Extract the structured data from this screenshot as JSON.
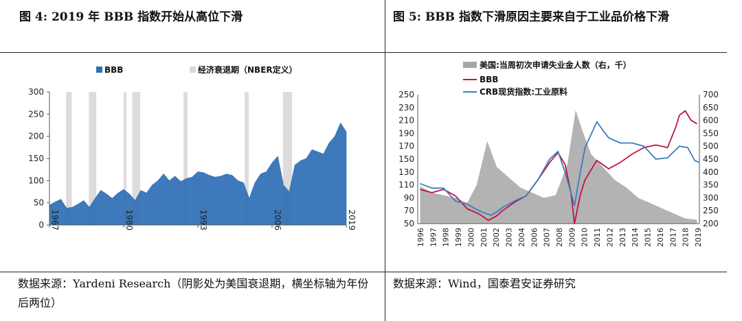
{
  "left": {
    "title": "图 4:   2019 年 BBB 指数开始从高位下滑",
    "source": "数据来源：Yardeni Research（阴影处为美国衰退期，横坐标轴为年份后两位）"
  },
  "right": {
    "title": "图 5:   BBB 指数下滑原因主要来自于工业品价格下滑",
    "source": "数据来源：Wind，国泰君安证券研究"
  },
  "chart_data": [
    {
      "type": "area",
      "title": "2019 年 BBB 指数开始从高位下滑",
      "legend": [
        "BBB",
        "经济衰退期（NBER定义）"
      ],
      "legend_position": "top",
      "x_ticks": [
        "1967",
        "1980",
        "1993",
        "2006",
        "2019"
      ],
      "y_ticks": [
        0,
        50,
        100,
        150,
        200,
        250,
        300
      ],
      "ylim": [
        0,
        300
      ],
      "xlim": [
        1967,
        2019
      ],
      "series": [
        {
          "name": "BBB",
          "color": "#2e6fb5",
          "x": [
            1967,
            1968,
            1969,
            1970,
            1971,
            1972,
            1973,
            1974,
            1975,
            1976,
            1977,
            1978,
            1979,
            1980,
            1981,
            1982,
            1983,
            1984,
            1985,
            1986,
            1987,
            1988,
            1989,
            1990,
            1991,
            1992,
            1993,
            1994,
            1995,
            1996,
            1997,
            1998,
            1999,
            2000,
            2001,
            2002,
            2003,
            2004,
            2005,
            2006,
            2007,
            2008,
            2009,
            2010,
            2011,
            2012,
            2013,
            2014,
            2015,
            2016,
            2017,
            2018,
            2019
          ],
          "values": [
            45,
            52,
            58,
            38,
            40,
            47,
            55,
            40,
            60,
            78,
            70,
            60,
            72,
            80,
            70,
            55,
            78,
            72,
            90,
            100,
            115,
            100,
            110,
            98,
            105,
            108,
            120,
            118,
            112,
            108,
            110,
            115,
            112,
            100,
            95,
            60,
            95,
            115,
            120,
            140,
            155,
            90,
            75,
            135,
            145,
            150,
            170,
            165,
            160,
            185,
            200,
            230,
            210
          ]
        }
      ],
      "recessions": [
        [
          1969.9,
          1970.9
        ],
        [
          1973.9,
          1975.2
        ],
        [
          1980.0,
          1980.5
        ],
        [
          1981.5,
          1982.9
        ],
        [
          1990.5,
          1991.2
        ],
        [
          2001.2,
          2001.9
        ],
        [
          2007.9,
          2009.5
        ]
      ]
    },
    {
      "type": "line",
      "title": "BBB 指数下滑原因主要来自于工业品价格下滑",
      "legend": [
        "美国:当周初次申请失业金人数（右，千）",
        "BBB",
        "CRB现货指数:工业原料"
      ],
      "legend_position": "top",
      "x_ticks": [
        "1996",
        "1997",
        "1998",
        "1999",
        "2000",
        "2001",
        "2002",
        "2003",
        "2004",
        "2006",
        "2007",
        "2008",
        "2009",
        "2010",
        "2011",
        "2012",
        "2013",
        "2014",
        "2015",
        "2016",
        "2017",
        "2018",
        "2019"
      ],
      "y_left_ticks": [
        50,
        70,
        90,
        110,
        130,
        150,
        170,
        190,
        210,
        230,
        250
      ],
      "y_right_ticks": [
        200,
        250,
        300,
        350,
        400,
        450,
        500,
        550,
        600,
        650,
        700
      ],
      "ylim_left": [
        50,
        250
      ],
      "ylim_right": [
        200,
        700
      ],
      "xlim": [
        1995.8,
        2019.7
      ],
      "series": [
        {
          "name": "美国:当周初次申请失业金人数（右，千）",
          "axis": "right",
          "color": "#a6a6a6",
          "x": [
            1996,
            1997,
            1998,
            1999,
            2000,
            2000.8,
            2001.7,
            2002.5,
            2003.5,
            2004.5,
            2005.5,
            2006.5,
            2007.5,
            2008.5,
            2009.2,
            2009.7,
            2010.5,
            2011.5,
            2012.5,
            2013.5,
            2014.5,
            2015.5,
            2016.5,
            2017.5,
            2018.5,
            2019.5
          ],
          "values": [
            345,
            320,
            310,
            300,
            280,
            350,
            520,
            420,
            380,
            340,
            320,
            300,
            310,
            430,
            640,
            570,
            470,
            420,
            370,
            340,
            300,
            280,
            260,
            240,
            220,
            215
          ]
        },
        {
          "name": "BBB",
          "axis": "left",
          "color": "#c0143c",
          "x": [
            1996,
            1997,
            1998,
            1999,
            2000,
            2001,
            2001.8,
            2002.5,
            2003,
            2004,
            2005,
            2006,
            2007,
            2007.7,
            2008.3,
            2008.8,
            2009.1,
            2009.6,
            2010,
            2011,
            2012,
            2013,
            2014,
            2015,
            2016,
            2017,
            2017.7,
            2018,
            2018.5,
            2019,
            2019.5
          ],
          "values": [
            103,
            98,
            103,
            93,
            73,
            65,
            55,
            62,
            70,
            83,
            93,
            118,
            145,
            160,
            142,
            98,
            50,
            95,
            118,
            148,
            135,
            145,
            158,
            168,
            172,
            168,
            200,
            218,
            225,
            210,
            205
          ]
        },
        {
          "name": "CRB现货指数:工业原料",
          "axis": "left",
          "color": "#3a7cc0",
          "x": [
            1996,
            1997,
            1998,
            1999,
            2000,
            2001,
            2002,
            2002.5,
            2003,
            2004,
            2005,
            2006,
            2007,
            2007.7,
            2008.3,
            2008.8,
            2009.1,
            2009.6,
            2010,
            2011,
            2011.5,
            2012,
            2013,
            2014,
            2015,
            2016,
            2017,
            2018,
            2018.7,
            2019.3,
            2019.7
          ],
          "values": [
            112,
            105,
            105,
            85,
            80,
            70,
            63,
            68,
            75,
            85,
            93,
            118,
            150,
            162,
            130,
            98,
            78,
            130,
            168,
            208,
            195,
            183,
            175,
            175,
            170,
            150,
            152,
            170,
            168,
            148,
            145
          ]
        }
      ]
    }
  ]
}
